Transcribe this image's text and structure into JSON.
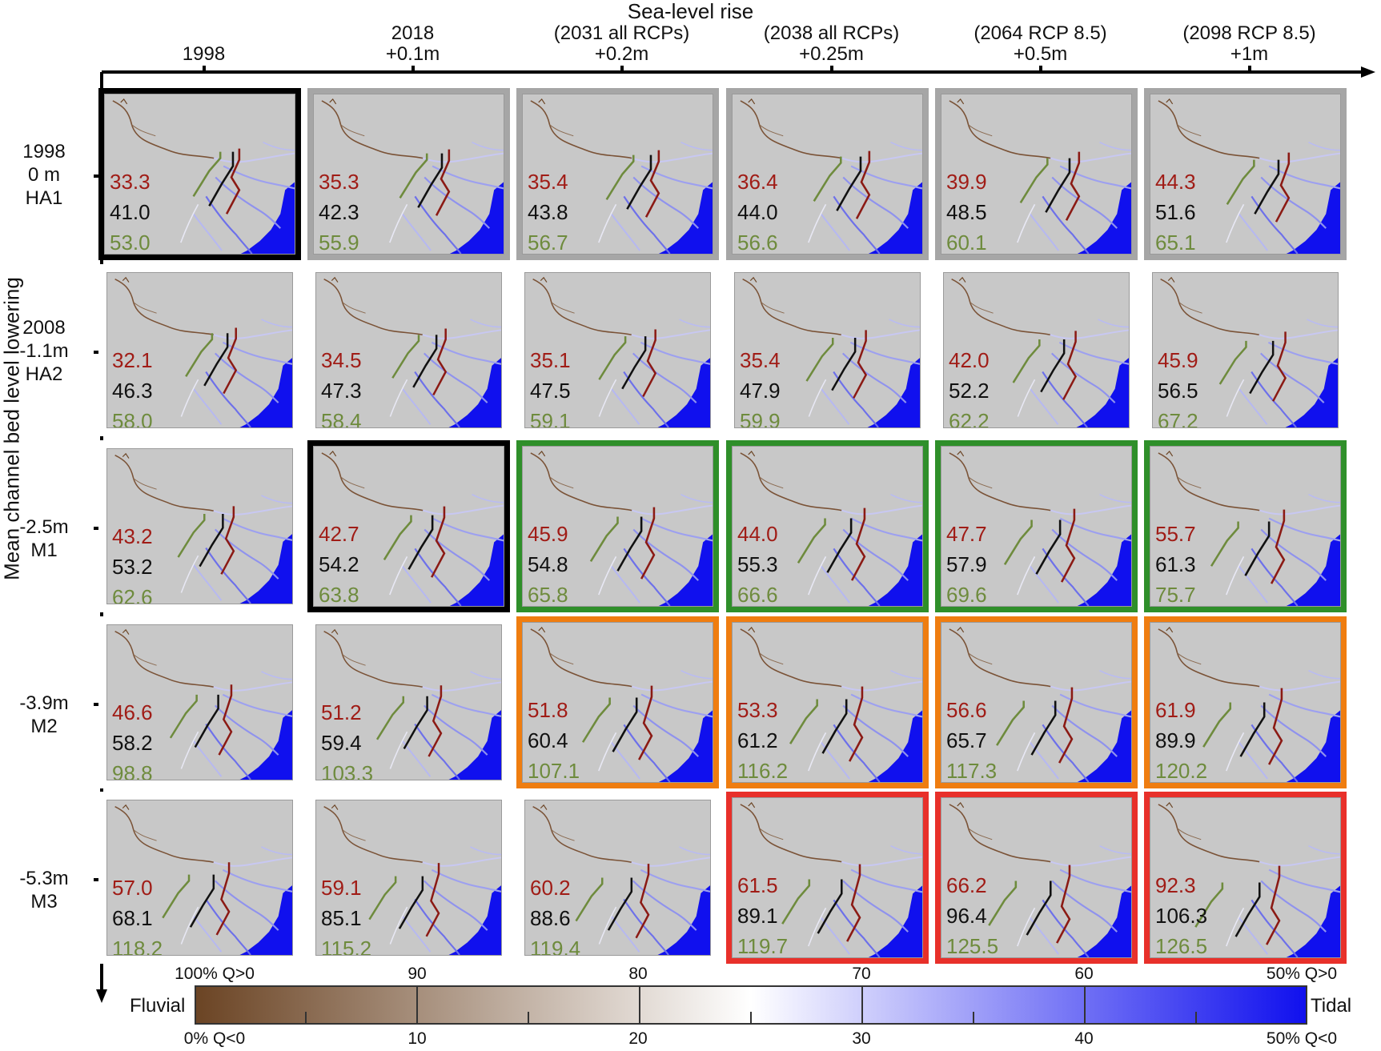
{
  "x_axis_title": "Sea-level rise",
  "y_axis_title": "Mean channel bed level lowering",
  "columns": [
    {
      "line1": "",
      "line2": "1998"
    },
    {
      "line1": "2018",
      "line2": "+0.1m"
    },
    {
      "line1": "(2031 all RCPs)",
      "line2": "+0.2m"
    },
    {
      "line1": "(2038 all RCPs)",
      "line2": "+0.25m"
    },
    {
      "line1": "(2064 RCP 8.5)",
      "line2": "+0.5m"
    },
    {
      "line1": "(2098 RCP 8.5)",
      "line2": "+1m"
    }
  ],
  "rows": [
    {
      "line1": "1998",
      "line2": "0 m",
      "line3": "HA1"
    },
    {
      "line1": "2008",
      "line2": "-1.1m",
      "line3": "HA2"
    },
    {
      "line1": "",
      "line2": "-2.5m",
      "line3": "M1"
    },
    {
      "line1": "",
      "line2": "-3.9m",
      "line3": "M2"
    },
    {
      "line1": "",
      "line2": "-5.3m",
      "line3": "M3"
    }
  ],
  "grid": [
    [
      {
        "red": "33.3",
        "black": "41.0",
        "green": "53.0",
        "frame": "black"
      },
      {
        "red": "35.3",
        "black": "42.3",
        "green": "55.9",
        "frame": "gray"
      },
      {
        "red": "35.4",
        "black": "43.8",
        "green": "56.7",
        "frame": "gray"
      },
      {
        "red": "36.4",
        "black": "44.0",
        "green": "56.6",
        "frame": "gray"
      },
      {
        "red": "39.9",
        "black": "48.5",
        "green": "60.1",
        "frame": "gray"
      },
      {
        "red": "44.3",
        "black": "51.6",
        "green": "65.1",
        "frame": "gray"
      }
    ],
    [
      {
        "red": "32.1",
        "black": "46.3",
        "green": "58.0",
        "frame": "none"
      },
      {
        "red": "34.5",
        "black": "47.3",
        "green": "58.4",
        "frame": "none"
      },
      {
        "red": "35.1",
        "black": "47.5",
        "green": "59.1",
        "frame": "none"
      },
      {
        "red": "35.4",
        "black": "47.9",
        "green": "59.9",
        "frame": "none"
      },
      {
        "red": "42.0",
        "black": "52.2",
        "green": "62.2",
        "frame": "none"
      },
      {
        "red": "45.9",
        "black": "56.5",
        "green": "67.2",
        "frame": "none"
      }
    ],
    [
      {
        "red": "43.2",
        "black": "53.2",
        "green": "62.6",
        "frame": "none"
      },
      {
        "red": "42.7",
        "black": "54.2",
        "green": "63.8",
        "frame": "black"
      },
      {
        "red": "45.9",
        "black": "54.8",
        "green": "65.8",
        "frame": "green"
      },
      {
        "red": "44.0",
        "black": "55.3",
        "green": "66.6",
        "frame": "green"
      },
      {
        "red": "47.7",
        "black": "57.9",
        "green": "69.6",
        "frame": "green"
      },
      {
        "red": "55.7",
        "black": "61.3",
        "green": "75.7",
        "frame": "green"
      }
    ],
    [
      {
        "red": "46.6",
        "black": "58.2",
        "green": "98.8",
        "frame": "none"
      },
      {
        "red": "51.2",
        "black": "59.4",
        "green": "103.3",
        "frame": "none"
      },
      {
        "red": "51.8",
        "black": "60.4",
        "green": "107.1",
        "frame": "orange"
      },
      {
        "red": "53.3",
        "black": "61.2",
        "green": "116.2",
        "frame": "orange"
      },
      {
        "red": "56.6",
        "black": "65.7",
        "green": "117.3",
        "frame": "orange"
      },
      {
        "red": "61.9",
        "black": "89.9",
        "green": "120.2",
        "frame": "orange"
      }
    ],
    [
      {
        "red": "57.0",
        "black": "68.1",
        "green": "118.2",
        "frame": "none"
      },
      {
        "red": "59.1",
        "black": "85.1",
        "green": "115.2",
        "frame": "none"
      },
      {
        "red": "60.2",
        "black": "88.6",
        "green": "119.4",
        "frame": "none"
      },
      {
        "red": "61.5",
        "black": "89.1",
        "green": "119.7",
        "frame": "red"
      },
      {
        "red": "66.2",
        "black": "96.4",
        "green": "125.5",
        "frame": "red"
      },
      {
        "red": "92.3",
        "black": "106.3",
        "green": "126.5",
        "frame": "red"
      }
    ]
  ],
  "frame_colors": {
    "black": "#000000",
    "gray": "#a6a6a6",
    "green": "#2f8f2a",
    "orange": "#ef7d10",
    "red": "#e8302a"
  },
  "colorbar": {
    "left_label": "Fluvial",
    "right_label": "Tidal",
    "top_labels": [
      "100% Q>0",
      "90",
      "80",
      "70",
      "60",
      "50% Q>0"
    ],
    "bottom_labels": [
      "0% Q<0",
      "10",
      "20",
      "30",
      "40",
      "50% Q<0"
    ],
    "color_start": "#6b4424",
    "color_mid": "#ffffff",
    "color_end": "#1010ee"
  }
}
